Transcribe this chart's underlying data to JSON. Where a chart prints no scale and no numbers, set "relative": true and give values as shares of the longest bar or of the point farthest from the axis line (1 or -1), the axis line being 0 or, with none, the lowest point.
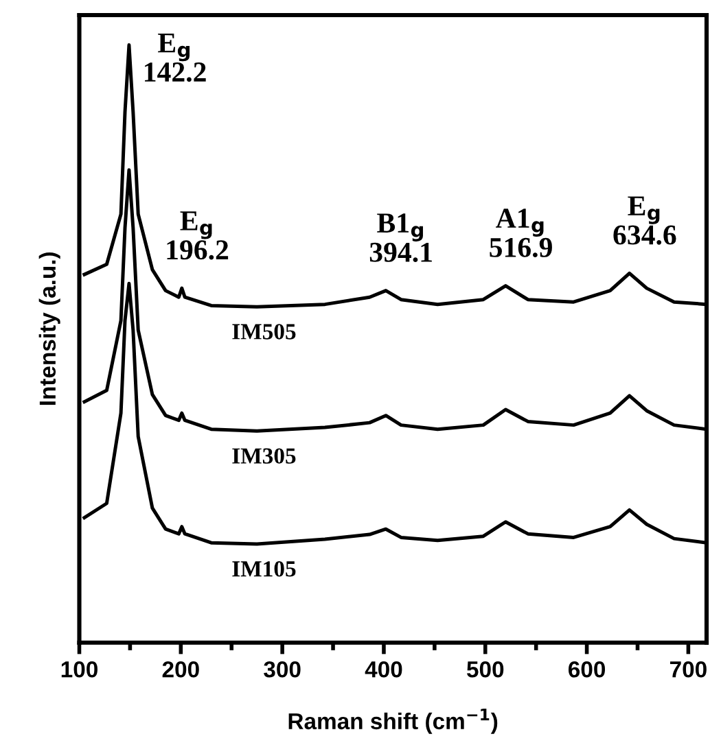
{
  "chart_data": {
    "type": "line",
    "relative": true,
    "xlabel": "Raman shift (cm$^{−1}$)",
    "ylabel": "Intensity (a.u.)",
    "x": [
      105,
      127,
      141,
      145,
      149,
      153,
      158,
      172,
      185,
      198,
      201,
      204,
      230,
      275,
      342,
      386,
      402,
      417,
      453,
      498,
      520,
      542,
      587,
      623,
      642,
      659,
      686,
      718
    ],
    "series": [
      {
        "name": "IM505",
        "color": "#000000",
        "values": [
          0.616,
          0.633,
          0.717,
          0.888,
          1.0,
          0.888,
          0.717,
          0.624,
          0.589,
          0.578,
          0.593,
          0.578,
          0.564,
          0.562,
          0.566,
          0.578,
          0.589,
          0.574,
          0.566,
          0.574,
          0.597,
          0.574,
          0.57,
          0.589,
          0.618,
          0.593,
          0.57,
          0.566
        ]
      },
      {
        "name": "IM305",
        "color": "#000000",
        "values": [
          0.403,
          0.422,
          0.539,
          0.694,
          0.791,
          0.694,
          0.523,
          0.415,
          0.38,
          0.372,
          0.384,
          0.372,
          0.357,
          0.354,
          0.36,
          0.368,
          0.38,
          0.364,
          0.357,
          0.364,
          0.39,
          0.37,
          0.364,
          0.384,
          0.413,
          0.388,
          0.364,
          0.357
        ]
      },
      {
        "name": "IM105",
        "color": "#000000",
        "values": [
          0.209,
          0.233,
          0.384,
          0.539,
          0.601,
          0.523,
          0.345,
          0.225,
          0.19,
          0.182,
          0.194,
          0.182,
          0.167,
          0.165,
          0.173,
          0.181,
          0.19,
          0.176,
          0.171,
          0.178,
          0.202,
          0.182,
          0.176,
          0.194,
          0.222,
          0.198,
          0.174,
          0.167
        ]
      }
    ],
    "annotations": [
      {
        "text": "E$_{g}$\n142.2",
        "x": 149,
        "y": 1.0
      },
      {
        "text": "E$_{g}$\n196.2",
        "x": 201,
        "y": 0.593
      },
      {
        "text": "B1$_{g}$\n394.1",
        "x": 402,
        "y": 0.589
      },
      {
        "text": "A1$_{g}$\n516.9",
        "x": 520,
        "y": 0.597
      },
      {
        "text": "E$_{g}$\n634.6",
        "x": 642,
        "y": 0.618
      }
    ],
    "xlim": [
      100,
      718
    ],
    "xticks": [
      100,
      {
        "value": 150,
        "label": null
      },
      200,
      {
        "value": 250,
        "label": null
      },
      300,
      {
        "value": 350,
        "label": null
      },
      400,
      {
        "value": 450,
        "label": null
      },
      500,
      {
        "value": 550,
        "label": null
      },
      600,
      {
        "value": 650,
        "label": null
      },
      700
    ],
    "grid": false,
    "legend": false,
    "marker": "none",
    "line_style": "solid"
  }
}
